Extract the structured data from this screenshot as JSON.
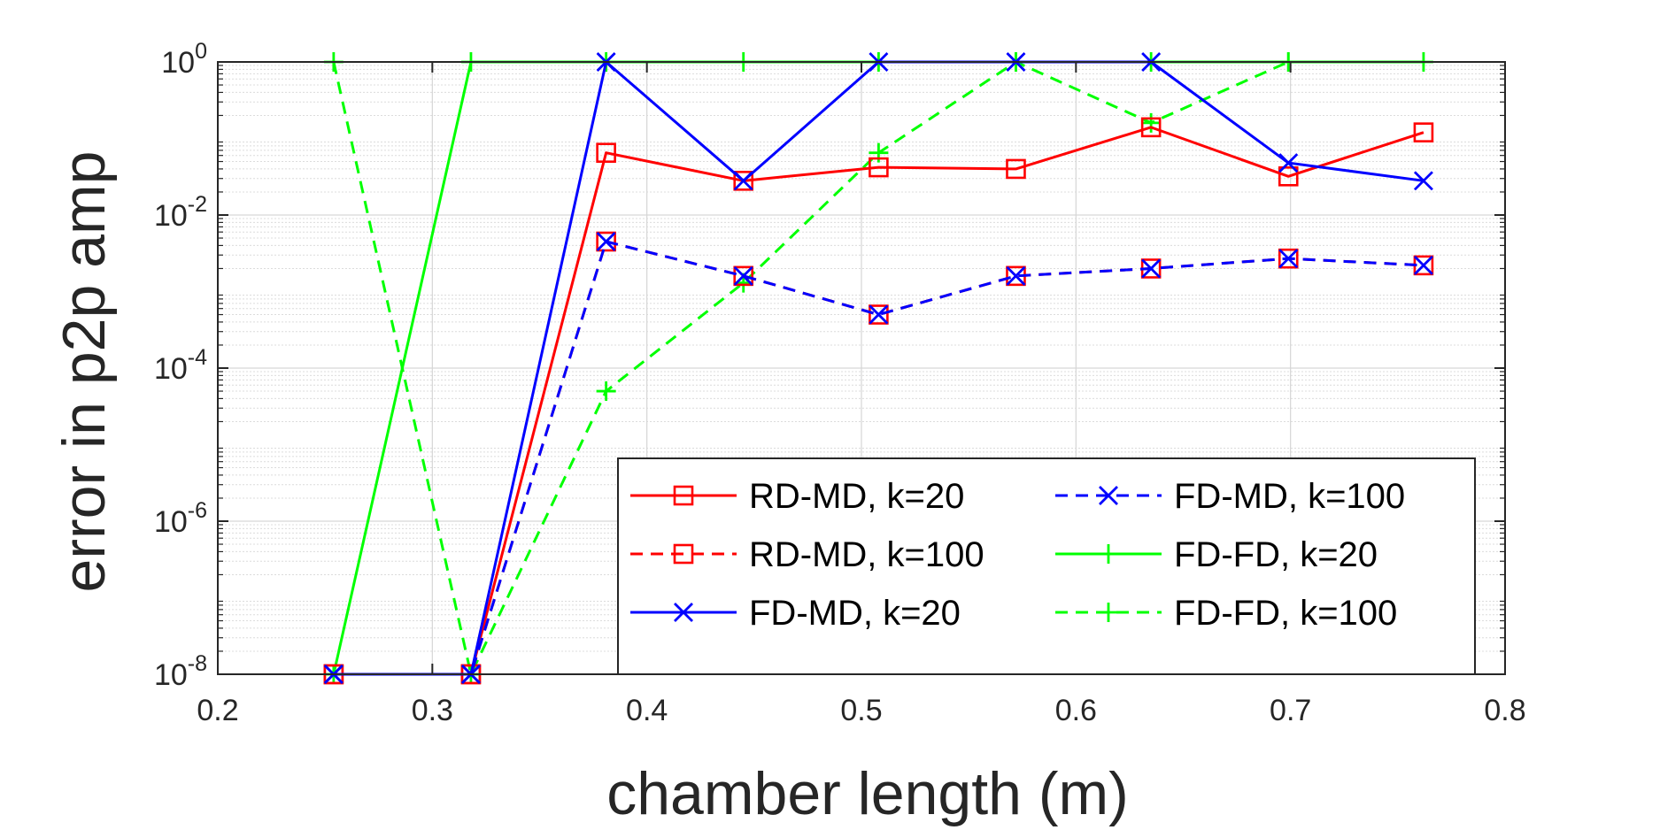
{
  "chart_data": {
    "type": "line",
    "title": "",
    "xlabel": "chamber length (m)",
    "ylabel": "error in p2p amp",
    "x_scale": "linear",
    "y_scale": "log",
    "xlim": [
      0.2,
      0.8
    ],
    "ylim": [
      1e-08,
      1
    ],
    "x_ticks": [
      0.2,
      0.3,
      0.4,
      0.5,
      0.6,
      0.7,
      0.8
    ],
    "x_tick_labels": [
      "0.2",
      "0.3",
      "0.4",
      "0.5",
      "0.6",
      "0.7",
      "0.8"
    ],
    "y_ticks": [
      1e-08,
      1e-06,
      0.0001,
      0.01,
      1
    ],
    "y_tick_labels": [
      {
        "base": "10",
        "exp": "-8"
      },
      {
        "base": "10",
        "exp": "-6"
      },
      {
        "base": "10",
        "exp": "-4"
      },
      {
        "base": "10",
        "exp": "-2"
      },
      {
        "base": "10",
        "exp": "0"
      }
    ],
    "grid": true,
    "minor_grid": true,
    "legend_position": "bottom-right",
    "legend_columns": 2,
    "x": [
      0.254,
      0.318,
      0.381,
      0.445,
      0.508,
      0.572,
      0.635,
      0.699,
      0.762
    ],
    "series": [
      {
        "name": "RD-MD, k=20",
        "color": "#ff0000",
        "dash": "solid",
        "marker": "square",
        "values": [
          1e-08,
          1e-08,
          0.065,
          0.028,
          0.042,
          0.04,
          0.14,
          0.032,
          0.12
        ]
      },
      {
        "name": "RD-MD, k=100",
        "color": "#ff0000",
        "dash": "dashed",
        "marker": "square",
        "values": [
          1e-08,
          1e-08,
          0.0045,
          0.0016,
          0.0005,
          0.0016,
          0.002,
          0.0027,
          0.0022
        ]
      },
      {
        "name": "FD-MD, k=20",
        "color": "#0000ff",
        "dash": "solid",
        "marker": "x",
        "values": [
          1e-08,
          1e-08,
          1,
          0.028,
          1,
          1,
          1,
          0.048,
          0.028
        ]
      },
      {
        "name": "FD-MD, k=100",
        "color": "#0000ff",
        "dash": "dashed",
        "marker": "x",
        "values": [
          1e-08,
          1e-08,
          0.0045,
          0.0016,
          0.0005,
          0.0016,
          0.002,
          0.0027,
          0.0022
        ]
      },
      {
        "name": "FD-FD, k=20",
        "color": "#00ff00",
        "dash": "solid",
        "marker": "plus",
        "values": [
          1e-08,
          1,
          1,
          1,
          1,
          1,
          1,
          1,
          1
        ]
      },
      {
        "name": "FD-FD, k=100",
        "color": "#00ff00",
        "dash": "dashed",
        "marker": "plus",
        "values": [
          1,
          1e-08,
          5e-05,
          0.0013,
          0.065,
          1,
          0.16,
          1,
          null
        ]
      }
    ]
  }
}
